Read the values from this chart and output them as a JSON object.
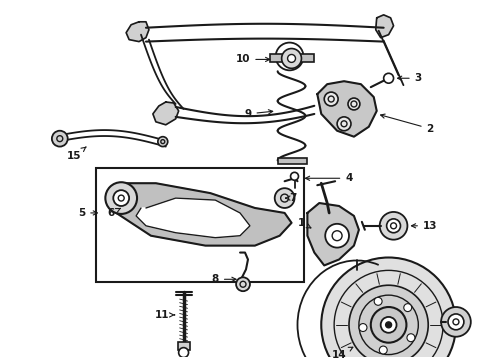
{
  "title": "",
  "bg_color": "#ffffff",
  "line_color": "#1a1a1a",
  "fig_width": 4.9,
  "fig_height": 3.6,
  "dpi": 100,
  "label_fontsize": 7.5,
  "label_fontweight": "bold",
  "lw_base": 1.0
}
